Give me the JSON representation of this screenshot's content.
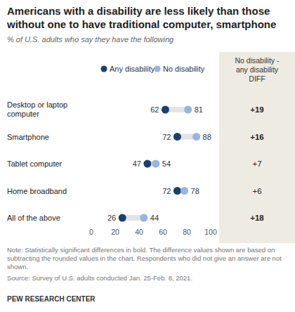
{
  "chart_data": {
    "type": "dot",
    "title": "Americans with a disability are less likely than those without one to have traditional computer, smartphone",
    "subtitle": "% of U.S. adults who say they have the following",
    "orientation": "horizontal",
    "categories": [
      "Desktop or laptop computer",
      "Smartphone",
      "Tablet computer",
      "Home broadband",
      "All of the above"
    ],
    "series": [
      {
        "name": "Any disability",
        "color": "#1c3f6e",
        "values": [
          62,
          72,
          47,
          72,
          26
        ]
      },
      {
        "name": "No disability",
        "color": "#9ab5dd",
        "values": [
          81,
          88,
          54,
          78,
          44
        ]
      }
    ],
    "xlim": [
      0,
      100
    ],
    "xticks": [
      0,
      20,
      40,
      60,
      80,
      100
    ],
    "grid": false,
    "legend": "top",
    "data_labels": true,
    "diff": {
      "header": [
        "No disability -",
        "any disability",
        "DIFF"
      ],
      "values": [
        19,
        16,
        7,
        6,
        18
      ],
      "value_labels": [
        "+19",
        "+16",
        "+7",
        "+6",
        "+18"
      ],
      "significant": [
        true,
        true,
        false,
        false,
        true
      ]
    },
    "note": "Note: Statistically significant differences in bold. The difference values shown are based on subtracting the rounded values in the chart. Respondents who did not give an answer are not shown.",
    "source": "Source: Survey of U.S. adults conducted Jan. 25-Feb. 8, 2021.",
    "credit": "PEW RESEARCH CENTER"
  }
}
